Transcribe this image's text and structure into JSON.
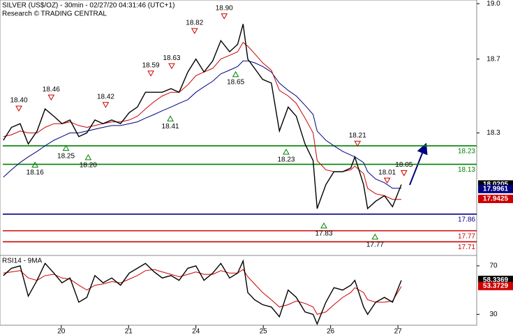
{
  "chart_data": [
    {
      "type": "line",
      "title": "SILVER (US$/OZ) - 30min - 02/27/20 04:31:46 (UTC+1)",
      "subtitle": "Research © TRADING CENTRAL",
      "x": [
        -0.86,
        -0.74,
        -0.61,
        -0.49,
        -0.36,
        -0.24,
        -0.11,
        0.01,
        0.13,
        0.26,
        0.38,
        0.5,
        0.62,
        0.75,
        0.88,
        1.01,
        1.13,
        1.25,
        1.38,
        1.5,
        1.63,
        1.75,
        1.88,
        2.0,
        2.12,
        2.25,
        2.37,
        2.5,
        2.62,
        2.7,
        2.77,
        2.87,
        2.99,
        3.12,
        3.24,
        3.37,
        3.49,
        3.62,
        3.74,
        3.8,
        3.93,
        4.05,
        4.18,
        4.3,
        4.36,
        4.49,
        4.55,
        4.67,
        4.8,
        4.92,
        5.05
      ],
      "xlim": [
        -0.91,
        6.17
      ],
      "xticks": [
        {
          "value": 0,
          "label": "20"
        },
        {
          "value": 1,
          "label": "21"
        },
        {
          "value": 2,
          "label": "24"
        },
        {
          "value": 3,
          "label": "25"
        },
        {
          "value": 4,
          "label": "26"
        },
        {
          "value": 5,
          "label": "27"
        }
      ],
      "ylim": [
        17.64,
        19.02
      ],
      "yticks": [
        {
          "value": 19,
          "label": "19.0"
        },
        18.7,
        18.3
      ],
      "series": [
        {
          "color": "#000000",
          "badge": 18.0205,
          "values": [
            18.26,
            18.33,
            18.35,
            18.24,
            18.31,
            18.43,
            18.39,
            18.35,
            18.37,
            18.28,
            18.3,
            18.37,
            18.35,
            18.37,
            18.35,
            18.41,
            18.44,
            18.52,
            18.52,
            18.52,
            18.54,
            18.52,
            18.63,
            18.7,
            18.63,
            18.69,
            18.8,
            18.74,
            18.78,
            18.89,
            18.7,
            18.65,
            18.59,
            18.57,
            18.31,
            18.44,
            18.39,
            18.24,
            18.15,
            17.89,
            18.02,
            18.09,
            18.09,
            18.11,
            18.17,
            18.02,
            17.89,
            17.93,
            17.96,
            17.9,
            18.02
          ]
        },
        {
          "color": "#cc0000",
          "badge": 17.9425,
          "values": [
            18.28,
            18.29,
            18.31,
            18.3,
            18.3,
            18.33,
            18.35,
            18.35,
            18.36,
            18.34,
            18.33,
            18.34,
            18.35,
            18.36,
            18.36,
            18.37,
            18.39,
            18.43,
            18.47,
            18.5,
            18.52,
            18.52,
            18.56,
            18.61,
            18.63,
            18.65,
            18.7,
            18.72,
            18.74,
            18.79,
            18.77,
            18.73,
            18.68,
            18.64,
            18.53,
            18.5,
            18.46,
            18.38,
            18.3,
            18.15,
            18.1,
            18.09,
            18.09,
            18.1,
            18.12,
            18.08,
            18.0,
            17.97,
            17.96,
            17.94,
            17.94
          ]
        },
        {
          "color": "#000080",
          "badge": 17.9961,
          "values": [
            18.06,
            18.1,
            18.14,
            18.17,
            18.2,
            18.23,
            18.26,
            18.28,
            18.3,
            18.3,
            18.31,
            18.32,
            18.33,
            18.34,
            18.34,
            18.35,
            18.36,
            18.38,
            18.4,
            18.42,
            18.44,
            18.46,
            18.48,
            18.52,
            18.55,
            18.58,
            18.62,
            18.64,
            18.66,
            18.69,
            18.69,
            18.68,
            18.66,
            18.63,
            18.57,
            18.53,
            18.5,
            18.45,
            18.4,
            18.31,
            18.26,
            18.23,
            18.2,
            18.18,
            18.17,
            18.14,
            18.09,
            18.05,
            18.03,
            18.0,
            18.0
          ]
        }
      ],
      "levels": [
        {
          "value": 18.23,
          "color": "#008000"
        },
        {
          "value": 18.13,
          "color": "#008000"
        },
        {
          "value": 17.86,
          "color": "#000080"
        },
        {
          "value": 17.77,
          "color": "#cc0000"
        },
        {
          "value": 17.71,
          "color": "#cc0000"
        }
      ],
      "annotations": [
        {
          "x": -0.63,
          "value": 18.4,
          "label": "18.40",
          "kind": "high"
        },
        {
          "x": -0.15,
          "value": 18.46,
          "label": "18.46",
          "kind": "high"
        },
        {
          "x": 0.66,
          "value": 18.42,
          "label": "18.42",
          "kind": "high"
        },
        {
          "x": 1.33,
          "value": 18.59,
          "label": "18.59",
          "kind": "high"
        },
        {
          "x": 1.64,
          "value": 18.63,
          "label": "18.63",
          "kind": "high"
        },
        {
          "x": 1.98,
          "value": 18.82,
          "label": "18.82",
          "kind": "high"
        },
        {
          "x": 2.42,
          "value": 18.9,
          "label": "18.90",
          "kind": "high"
        },
        {
          "x": 2.59,
          "value": 18.65,
          "label": "18.65",
          "kind": "low"
        },
        {
          "x": 1.62,
          "value": 18.41,
          "label": "18.41",
          "kind": "low"
        },
        {
          "x": 0.07,
          "value": 18.25,
          "label": "18.25",
          "kind": "low"
        },
        {
          "x": -0.39,
          "value": 18.16,
          "label": "18.16",
          "kind": "low"
        },
        {
          "x": 0.4,
          "value": 18.2,
          "label": "18.20",
          "kind": "low"
        },
        {
          "x": 3.34,
          "value": 18.23,
          "label": "18.23",
          "kind": "low"
        },
        {
          "x": 3.9,
          "value": 17.83,
          "label": "17.83",
          "kind": "low"
        },
        {
          "x": 4.4,
          "value": 18.21,
          "label": "18.21",
          "kind": "high"
        },
        {
          "x": 4.84,
          "value": 18.01,
          "label": "18.01",
          "kind": "high"
        },
        {
          "x": 5.09,
          "value": 18.05,
          "label": "18.05",
          "kind": "high"
        },
        {
          "x": 4.66,
          "value": 17.77,
          "label": "17.77",
          "kind": "low"
        }
      ]
    },
    {
      "type": "line",
      "title": "RSI14 - 9MA",
      "ylim": [
        21,
        78
      ],
      "yticks": [
        70,
        30
      ],
      "series": [
        {
          "color": "#000000",
          "badge": 58.3369,
          "values": [
            62,
            68,
            70,
            45,
            58,
            72,
            64,
            56,
            60,
            40,
            44,
            62,
            56,
            60,
            54,
            64,
            68,
            72,
            65,
            60,
            62,
            58,
            68,
            70,
            58,
            64,
            72,
            60,
            64,
            74,
            48,
            42,
            38,
            36,
            28,
            50,
            44,
            32,
            30,
            22,
            40,
            52,
            50,
            54,
            58,
            36,
            30,
            40,
            44,
            40,
            58
          ]
        },
        {
          "color": "#cc0000",
          "badge": 53.3729,
          "values": [
            64,
            65,
            66,
            60,
            58,
            62,
            63,
            60,
            59,
            54,
            50,
            54,
            55,
            57,
            56,
            59,
            62,
            66,
            67,
            65,
            63,
            61,
            63,
            65,
            63,
            63,
            66,
            64,
            64,
            67,
            61,
            55,
            48,
            42,
            36,
            38,
            41,
            39,
            36,
            30,
            32,
            38,
            44,
            48,
            52,
            48,
            42,
            40,
            40,
            41,
            53
          ]
        }
      ]
    }
  ]
}
